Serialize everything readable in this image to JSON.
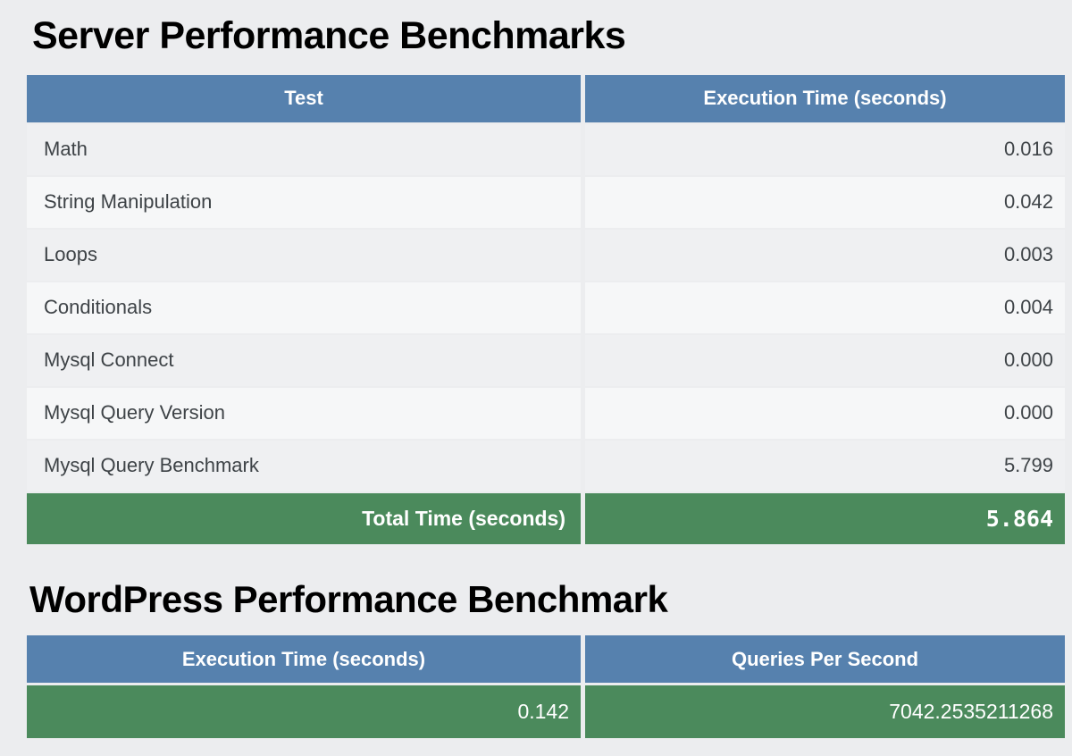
{
  "theme": {
    "page_background": "#ecedef",
    "header_blue": "#5681ae",
    "result_green": "#4b8a5c",
    "row_odd": "#eff0f2",
    "row_even": "#f6f7f8",
    "text_dark": "#3e4347",
    "text_light": "#ffffff"
  },
  "server_benchmarks": {
    "title": "Server Performance Benchmarks",
    "columns": [
      "Test",
      "Execution Time (seconds)"
    ],
    "rows": [
      {
        "test": "Math",
        "time": "0.016"
      },
      {
        "test": "String Manipulation",
        "time": "0.042"
      },
      {
        "test": "Loops",
        "time": "0.003"
      },
      {
        "test": "Conditionals",
        "time": "0.004"
      },
      {
        "test": "Mysql Connect",
        "time": "0.000"
      },
      {
        "test": "Mysql Query Version",
        "time": "0.000"
      },
      {
        "test": "Mysql Query Benchmark",
        "time": "5.799"
      }
    ],
    "total": {
      "label": "Total Time (seconds)",
      "value": "5.864"
    }
  },
  "wordpress_benchmark": {
    "title": "WordPress Performance Benchmark",
    "columns": [
      "Execution Time (seconds)",
      "Queries Per Second"
    ],
    "result": {
      "execution_time": "0.142",
      "queries_per_second": "7042.2535211268"
    }
  }
}
